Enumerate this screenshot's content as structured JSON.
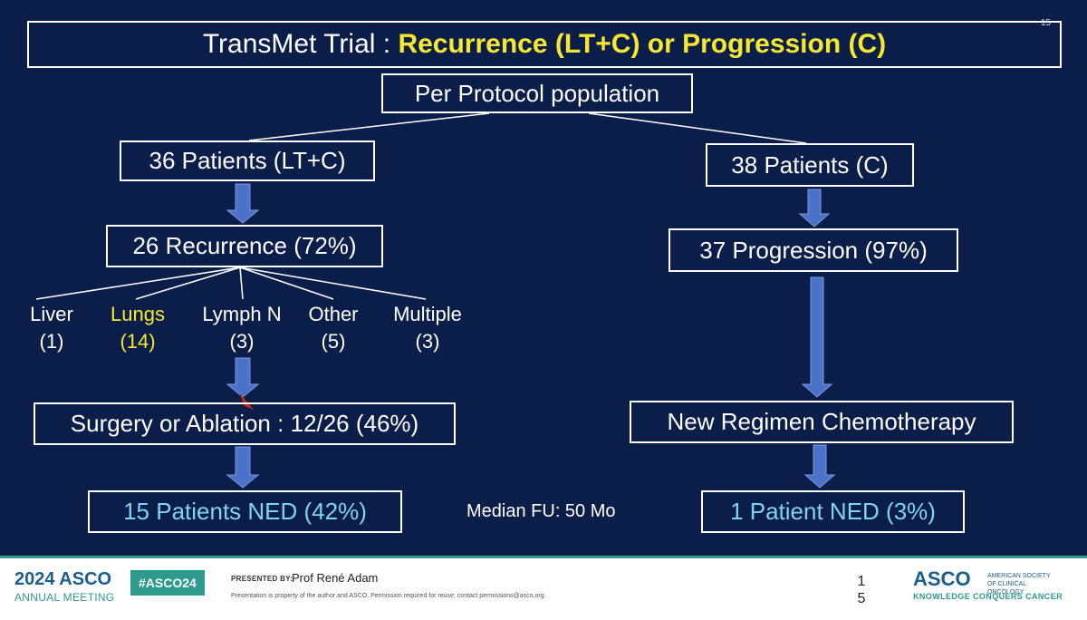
{
  "slide": {
    "number": "15",
    "title_prefix": "TransMet Trial : ",
    "title_highlight": "Recurrence (LT+C) or Progression (C)",
    "root": "Per Protocol population",
    "left": {
      "patients": "36 Patients (LT+C)",
      "recurrence": "26 Recurrence (72%)",
      "sites": [
        {
          "name": "Liver",
          "count": "(1)",
          "highlight": false
        },
        {
          "name": "Lungs",
          "count": "(14)",
          "highlight": true
        },
        {
          "name": "Lymph N",
          "count": "(3)",
          "highlight": false
        },
        {
          "name": "Other",
          "count": "(5)",
          "highlight": false
        },
        {
          "name": "Multiple",
          "count": "(3)",
          "highlight": false
        }
      ],
      "surgery": "Surgery or Ablation : 12/26 (46%)",
      "ned": "15 Patients NED (42%)"
    },
    "right": {
      "patients": "38 Patients (C)",
      "progression": "37 Progression  (97%)",
      "chemo": "New Regimen Chemotherapy",
      "ned": "1 Patient NED (3%)"
    },
    "median_fu": "Median FU: 50 Mo",
    "colors": {
      "background": "#0b1e4a",
      "highlight": "#f5e82f",
      "ned_text": "#7fd3f3",
      "arrow": "#4a72c8"
    }
  },
  "footer": {
    "year_meeting": "2024 ASCO",
    "annual_meeting": "ANNUAL MEETING",
    "hashtag": "#ASCO24",
    "presented_by_label": "PRESENTED BY:",
    "presenter": "Prof René Adam",
    "note": "Presentation is property of the author and ASCO. Permission required for reuse; contact permissions@asco.org.",
    "page": "15",
    "logo": "ASCO",
    "society": "AMERICAN SOCIETY OF CLINICAL ONCOLOGY",
    "tagline": "KNOWLEDGE CONQUERS CANCER"
  }
}
